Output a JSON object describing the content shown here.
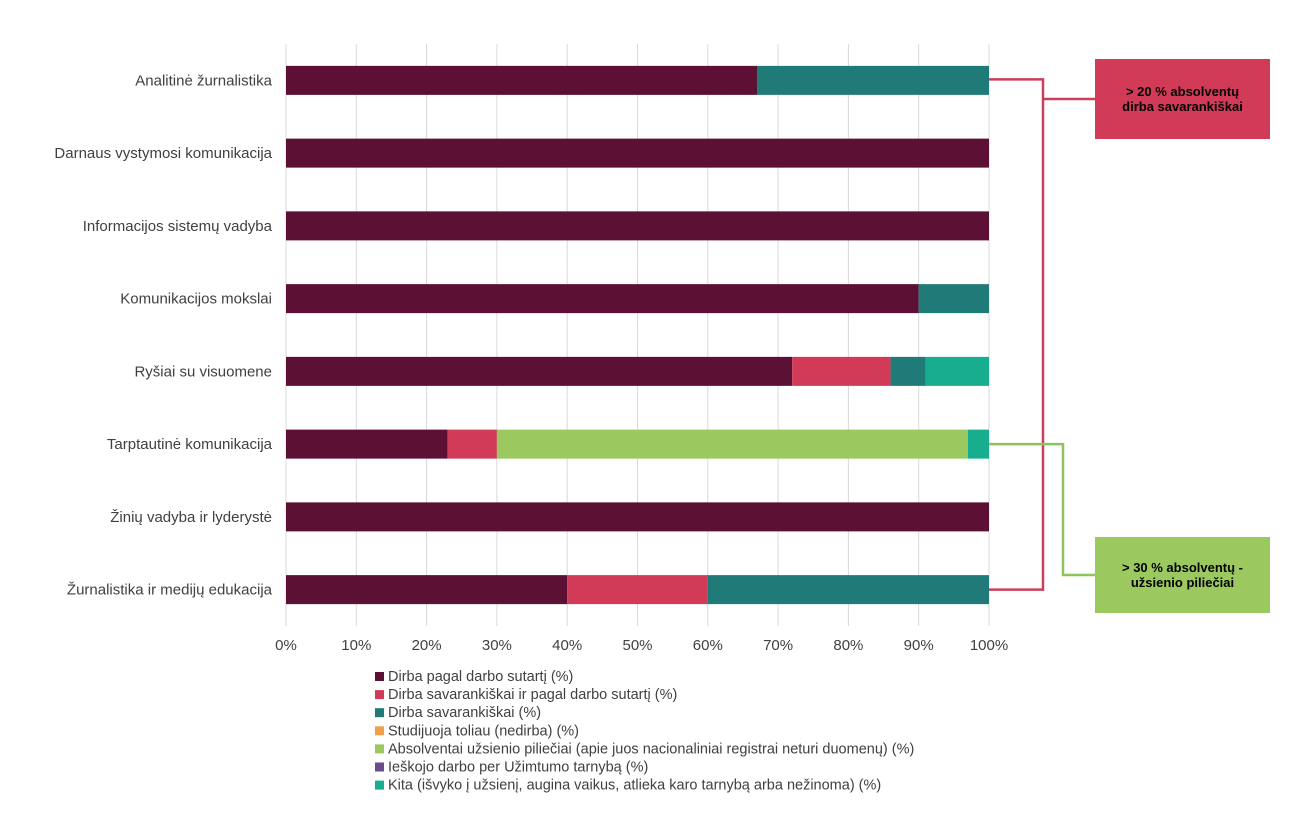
{
  "chart_data": {
    "type": "bar",
    "orientation": "horizontal",
    "stacked": true,
    "categories": [
      "Analitinė žurnalistika",
      "Darnaus vystymosi komunikacija",
      "Informacijos sistemų vadyba",
      "Komunikacijos mokslai",
      "Ryšiai su visuomene",
      "Tarptautinė komunikacija",
      "Žinių vadyba ir lyderystė",
      "Žurnalistika ir medijų edukacija"
    ],
    "series": [
      {
        "name": "Dirba pagal darbo sutartį (%)",
        "color": "#5c1034",
        "values": [
          67,
          100,
          100,
          90,
          72,
          23,
          100,
          40
        ]
      },
      {
        "name": "Dirba savarankiškai ir pagal darbo sutartį (%)",
        "color": "#d23b57",
        "values": [
          0,
          0,
          0,
          0,
          14,
          7,
          0,
          20
        ]
      },
      {
        "name": "Dirba savarankiškai (%)",
        "color": "#207b78",
        "values": [
          33,
          0,
          0,
          10,
          5,
          0,
          0,
          40
        ]
      },
      {
        "name": "Studijuoja toliau (nedirba) (%)",
        "color": "#f0a04b",
        "values": [
          0,
          0,
          0,
          0,
          0,
          0,
          0,
          0
        ]
      },
      {
        "name": "Absolventai užsienio piliečiai (apie juos nacionaliniai registrai neturi duomenų) (%)",
        "color": "#9bc95f",
        "values": [
          0,
          0,
          0,
          0,
          0,
          67,
          0,
          0
        ]
      },
      {
        "name": "Ieškojo darbo per Užimtumo tarnybą (%)",
        "color": "#6a4c8c",
        "values": [
          0,
          0,
          0,
          0,
          0,
          0,
          0,
          0
        ]
      },
      {
        "name": "Kita (išvyko į užsienį, augina vaikus, atlieka karo tarnybą arba nežinoma) (%)",
        "color": "#17ad8f",
        "values": [
          0,
          0,
          0,
          0,
          9,
          3,
          0,
          0
        ]
      }
    ],
    "xlim": [
      0,
      100
    ],
    "xticks": [
      "0%",
      "10%",
      "20%",
      "30%",
      "40%",
      "50%",
      "60%",
      "70%",
      "80%",
      "90%",
      "100%"
    ],
    "grid": "vertical",
    "legend": "bottom",
    "callouts": [
      {
        "text_line1": "> 20 % absolventų",
        "text_line2": "dirba savarankiškai",
        "color": "#d23b57",
        "line_color": "#c8405a",
        "categories": [
          0,
          7
        ]
      },
      {
        "text_line1": "> 30 % absolventų -",
        "text_line2": "užsienio piliečiai",
        "color": "#9bc95f",
        "line_color": "#8dc35a",
        "categories": [
          5
        ]
      }
    ]
  }
}
